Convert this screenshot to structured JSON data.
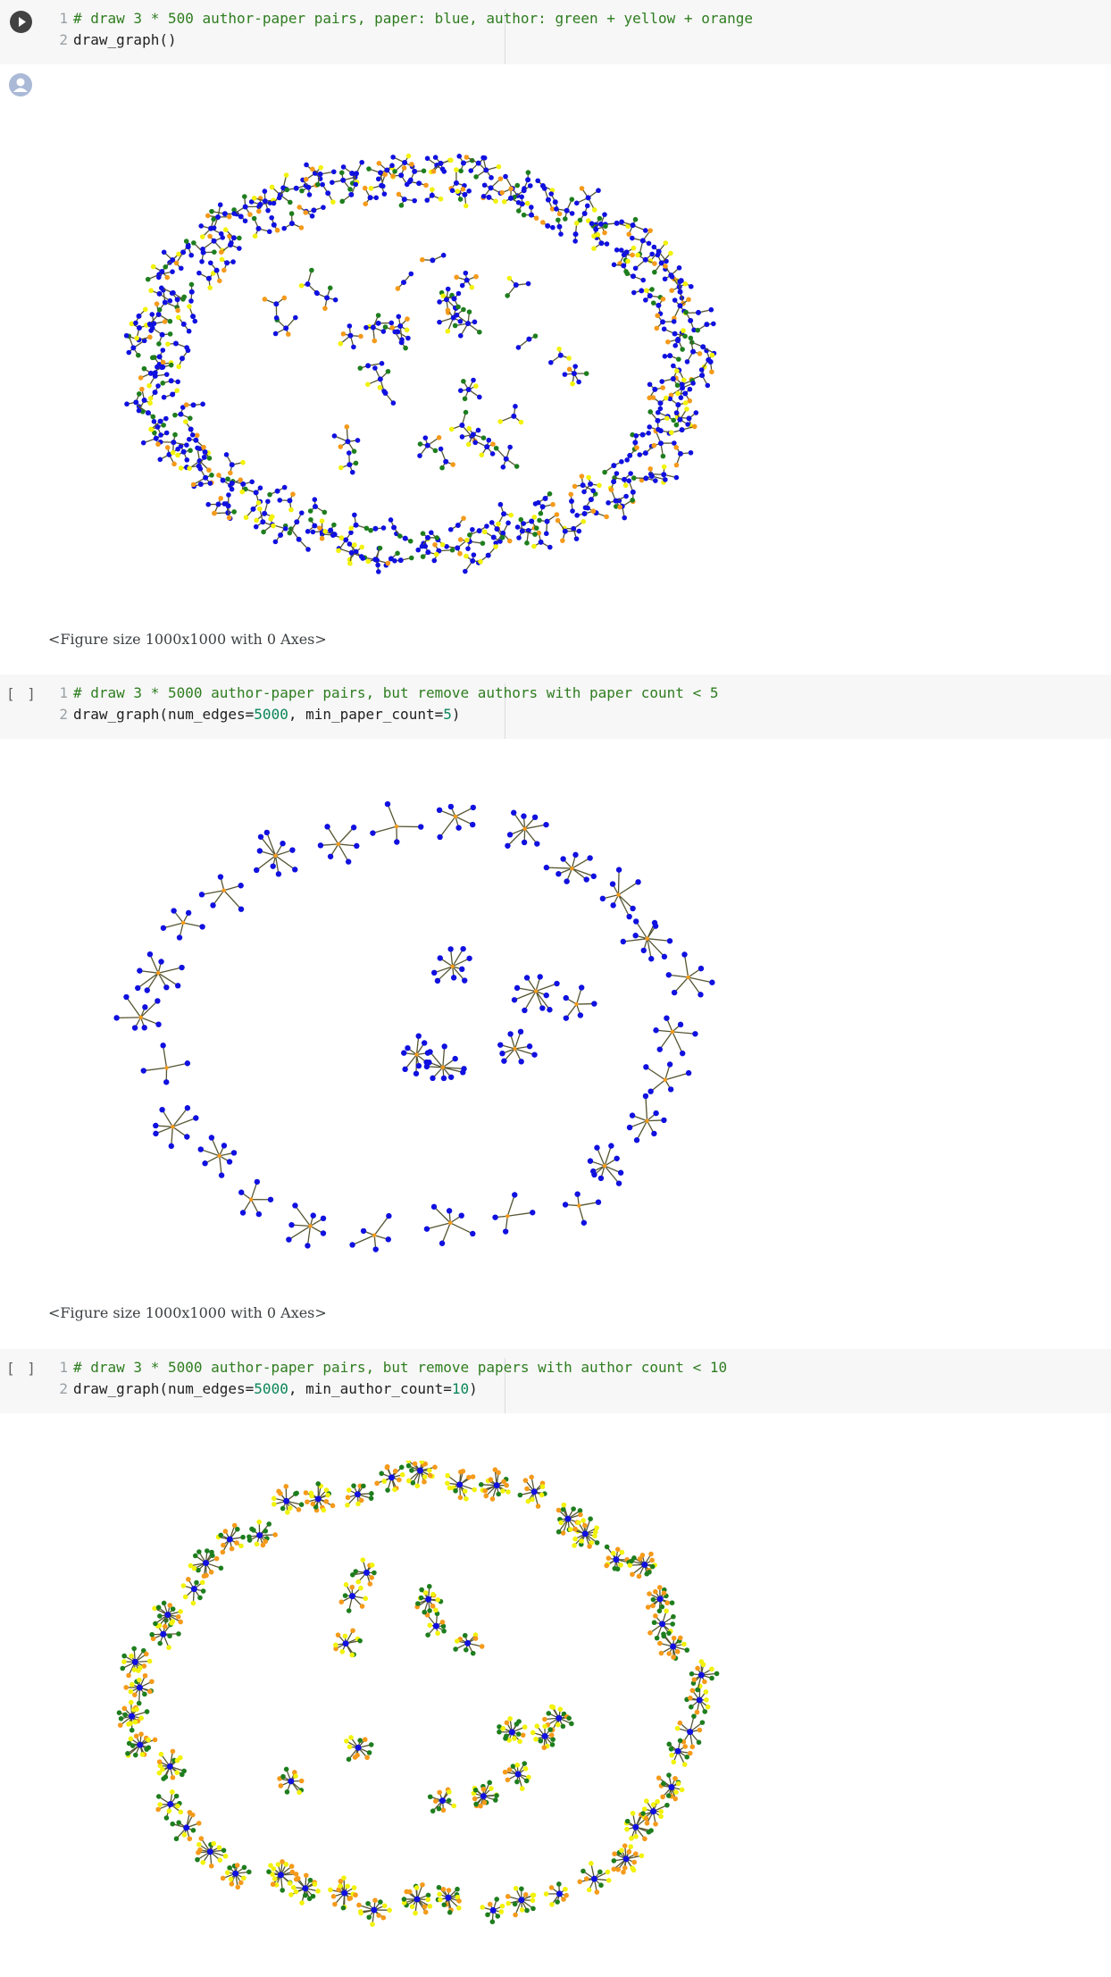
{
  "cells": [
    {
      "kind": "executed",
      "lines": [
        {
          "no": "1",
          "text": "# draw 3 * 500 author-paper pairs, paper: blue, author: green + yellow + orange"
        },
        {
          "no": "2",
          "text": "draw_graph()"
        }
      ],
      "output_text": "<Figure size 1000x1000 with 0 Axes>"
    },
    {
      "kind": "idle",
      "bracket": "[ ]",
      "lines": [
        {
          "no": "1",
          "text": "# draw 3 * 5000 author-paper pairs, but remove authors with paper count < 5"
        },
        {
          "no": "2",
          "text": "draw_graph(num_edges=5000, min_paper_count=5)"
        }
      ],
      "call": {
        "fn": "draw_graph(",
        "k1": "num_edges=",
        "v1": "5000",
        "sep": ", ",
        "k2": "min_paper_count=",
        "v2": "5",
        "end": ")"
      },
      "output_text": "<Figure size 1000x1000 with 0 Axes>"
    },
    {
      "kind": "idle",
      "bracket": "[ ]",
      "lines": [
        {
          "no": "1",
          "text": "# draw 3 * 5000 author-paper pairs, but remove papers with author count < 10"
        },
        {
          "no": "2",
          "text": "draw_graph(num_edges=5000, min_author_count=10)"
        }
      ],
      "call": {
        "fn": "draw_graph(",
        "k1": "num_edges=",
        "v1": "5000",
        "sep": ", ",
        "k2": "min_author_count=",
        "v2": "10",
        "end": ")"
      }
    }
  ],
  "colors": {
    "paper": "#1010e0",
    "author_green": "#1e7e1e",
    "author_yellow": "#f2f20a",
    "author_orange": "#f59a1a",
    "edge": "#555533",
    "cell_bg": "#f7f7f7"
  },
  "graphs": [
    {
      "name": "graph-all-pairs",
      "style": "mixed"
    },
    {
      "name": "graph-min-paper-count",
      "style": "blue"
    },
    {
      "name": "graph-min-author-count",
      "style": "colorful"
    }
  ]
}
